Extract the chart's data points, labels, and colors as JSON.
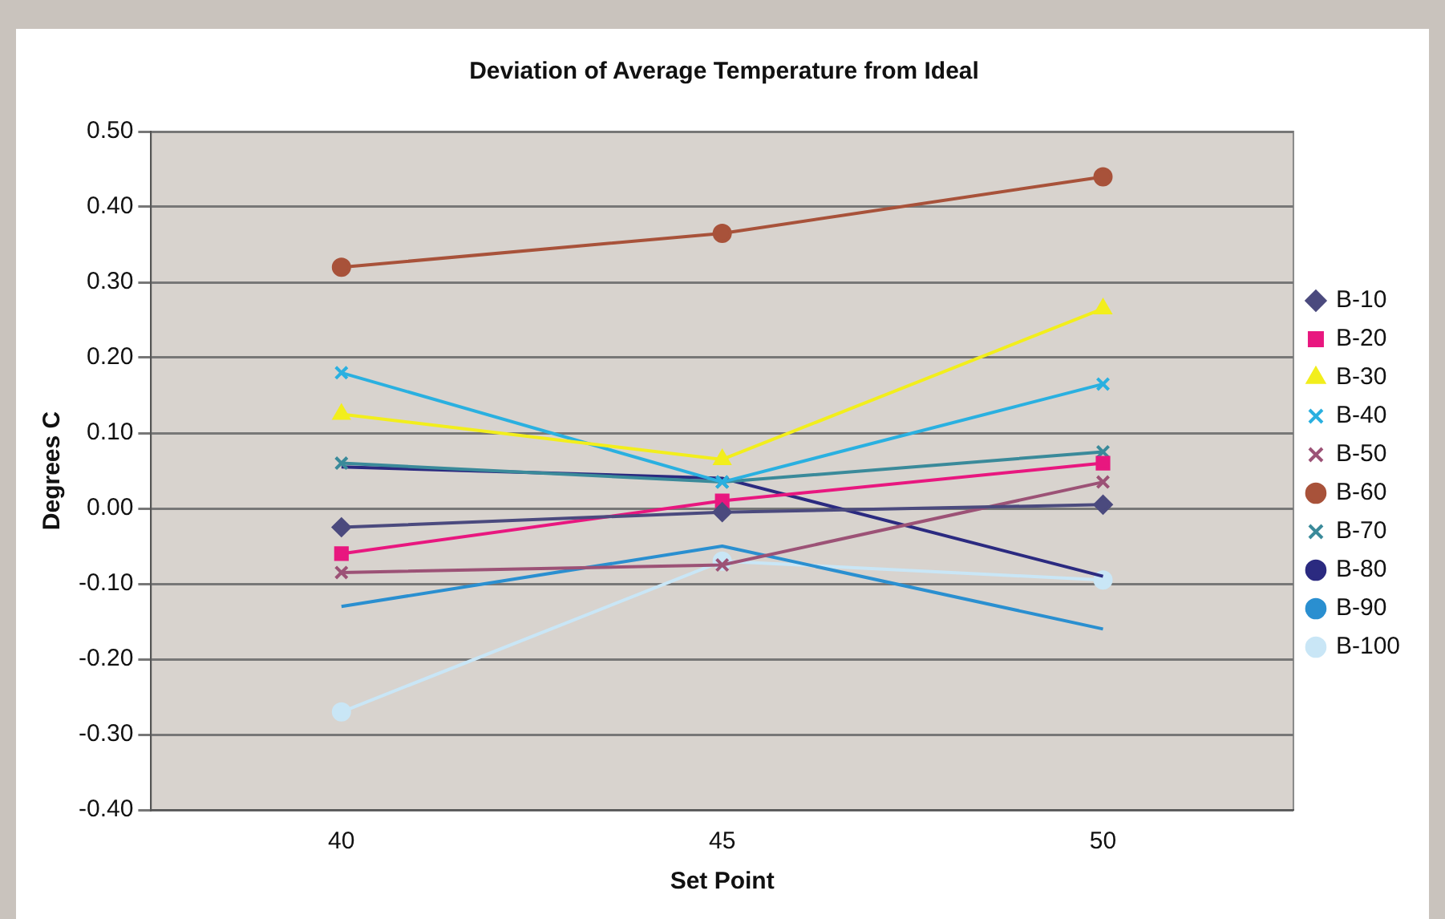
{
  "chart_data": {
    "type": "line",
    "title": "Deviation of Average Temperature from Ideal",
    "xlabel": "Set Point",
    "ylabel": "Degrees C",
    "categories": [
      "40",
      "45",
      "50"
    ],
    "series": [
      {
        "name": "B-10",
        "color": "#4b4a7e",
        "marker": "diamond",
        "values": [
          -0.025,
          -0.005,
          0.005
        ]
      },
      {
        "name": "B-20",
        "color": "#e8177f",
        "marker": "square",
        "values": [
          -0.06,
          0.01,
          0.06
        ]
      },
      {
        "name": "B-30",
        "color": "#f2ee1c",
        "marker": "triangle",
        "values": [
          0.125,
          0.065,
          0.265
        ]
      },
      {
        "name": "B-40",
        "color": "#2ab0e0",
        "marker": "cross",
        "values": [
          0.18,
          0.035,
          0.165
        ]
      },
      {
        "name": "B-50",
        "color": "#9c5276",
        "marker": "cross",
        "values": [
          -0.085,
          -0.075,
          0.035
        ]
      },
      {
        "name": "B-60",
        "color": "#a8523a",
        "marker": "circle",
        "values": [
          0.32,
          0.365,
          0.44
        ]
      },
      {
        "name": "B-70",
        "color": "#3a8a9a",
        "marker": "cross",
        "values": [
          0.06,
          0.035,
          0.075
        ]
      },
      {
        "name": "B-80",
        "color": "#2b2a80",
        "marker": "none",
        "values": [
          0.055,
          0.04,
          -0.09
        ]
      },
      {
        "name": "B-90",
        "color": "#2a8fd0",
        "marker": "none",
        "values": [
          -0.13,
          -0.05,
          -0.16
        ]
      },
      {
        "name": "B-100",
        "color": "#c9e6f6",
        "marker": "circle",
        "values": [
          -0.27,
          -0.07,
          -0.095
        ]
      }
    ],
    "ylim": [
      -0.4,
      0.5
    ],
    "yticks": [
      {
        "value": -0.4,
        "label": "-0.40"
      },
      {
        "value": -0.3,
        "label": "-0.30"
      },
      {
        "value": -0.2,
        "label": "-0.20"
      },
      {
        "value": -0.1,
        "label": "-0.10"
      },
      {
        "value": 0,
        "label": "0.00"
      },
      {
        "value": 0.1,
        "label": "0.10"
      },
      {
        "value": 0.2,
        "label": "0.20"
      },
      {
        "value": 0.3,
        "label": "0.30"
      },
      {
        "value": 0.4,
        "label": "0.40"
      },
      {
        "value": 0.5,
        "label": "0.50"
      }
    ],
    "grid": "y",
    "legend": "right",
    "line_style": "solid"
  }
}
